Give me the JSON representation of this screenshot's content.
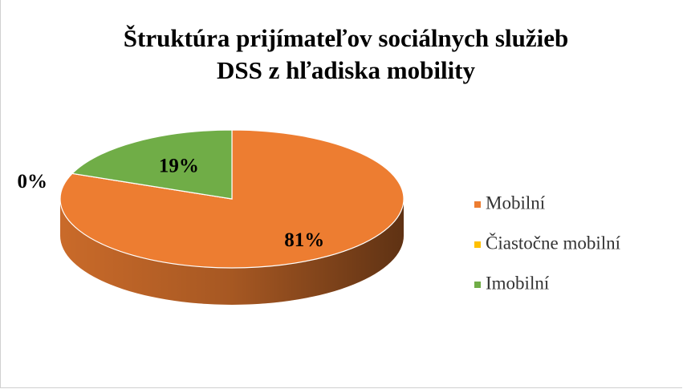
{
  "chart_data": {
    "type": "pie",
    "title": "Štruktúra prijímateľov sociálnych služieb DSS z hľadiska mobility",
    "categories": [
      "Mobilní",
      "Čiastočne mobilní",
      "Imobilní"
    ],
    "values": [
      81,
      0,
      19
    ],
    "value_labels": [
      "81%",
      "0%",
      "19%"
    ],
    "colors": [
      "#ED7D31",
      "#FFC000",
      "#70AD47"
    ],
    "legend": "right"
  }
}
